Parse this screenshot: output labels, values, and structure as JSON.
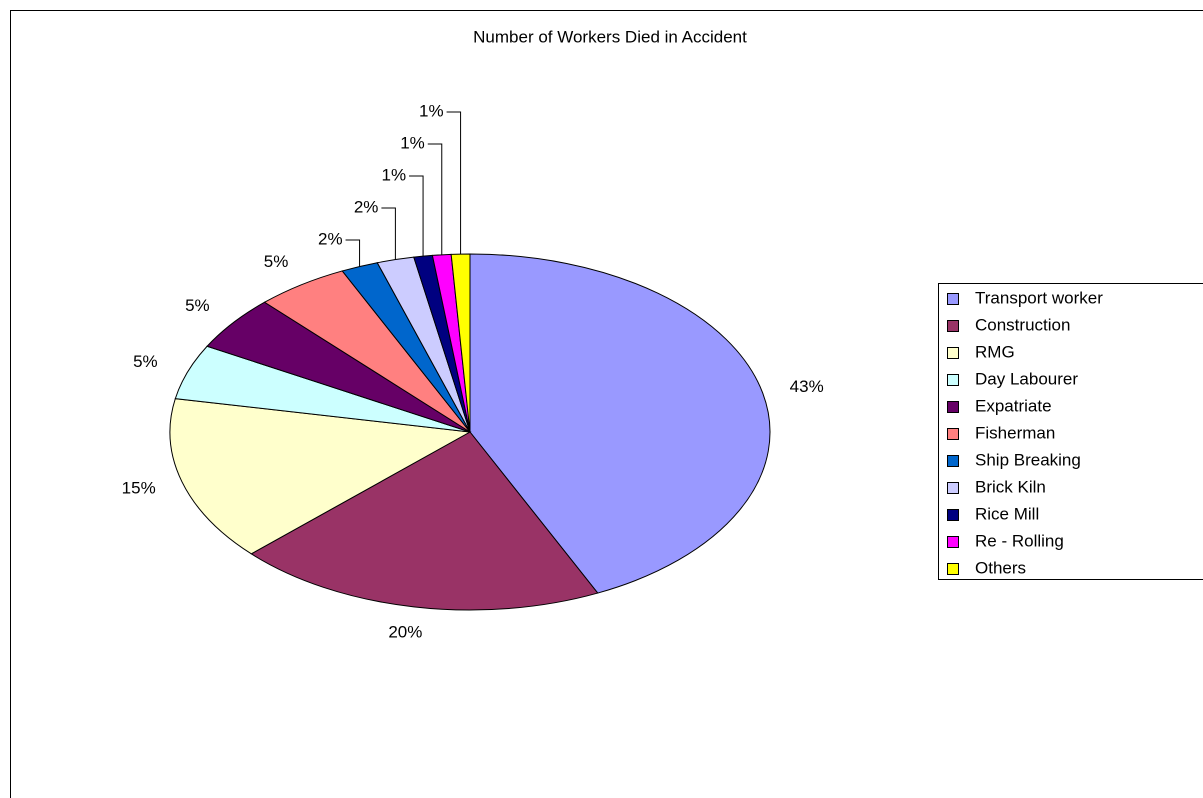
{
  "chart_data": {
    "type": "pie",
    "title": "Number of Workers Died in Accident",
    "categories": [
      "Transport worker",
      "Construction",
      "RMG",
      "Day Labourer",
      "Expatriate",
      "Fisherman",
      "Ship Breaking",
      "Brick Kiln",
      "Rice Mill",
      "Re - Rolling",
      "Others"
    ],
    "values": [
      43,
      20,
      15,
      5,
      5,
      5,
      2,
      2,
      1,
      1,
      1
    ],
    "value_labels": [
      "43%",
      "20%",
      "15%",
      "5%",
      "5%",
      "5%",
      "2%",
      "2%",
      "1%",
      "1%",
      "1%"
    ],
    "colors": [
      "#9999ff",
      "#993366",
      "#ffffcc",
      "#ccffff",
      "#660066",
      "#ff8080",
      "#0066cc",
      "#ccccff",
      "#000080",
      "#ff00ff",
      "#ffff00"
    ],
    "legend": "right"
  }
}
